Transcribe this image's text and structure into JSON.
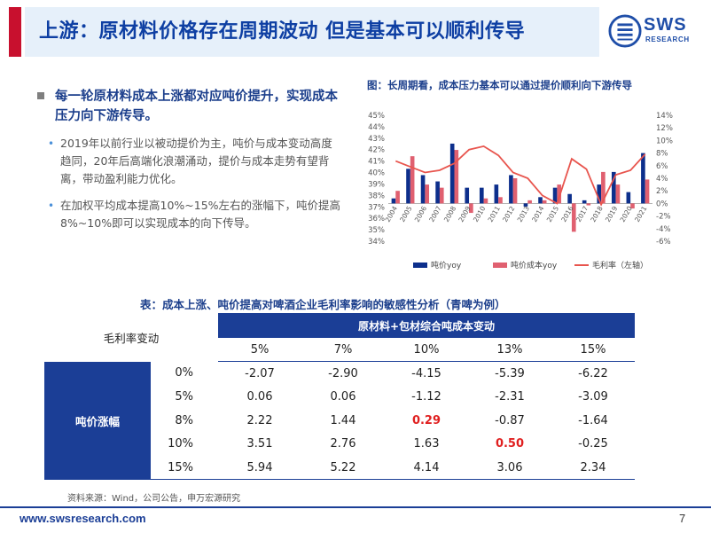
{
  "header": {
    "title": "上游：原材料价格存在周期波动 但是基本可以顺利传导",
    "logo_text": "SWS",
    "logo_sub": "RESEARCH"
  },
  "colors": {
    "accent_red": "#c8102e",
    "brand_blue": "#1b3e96",
    "bar_price": "#0d2f8c",
    "bar_cost": "#e06070",
    "line_margin": "#e8554e"
  },
  "left": {
    "main_bullet": "每一轮原材料成本上涨都对应吨价提升，实现成本压力向下游传导。",
    "sub_bullets": [
      "2019年以前行业以被动提价为主，吨价与成本变动高度趋同，20年后高端化浪潮涌动，提价与成本走势有望背离，带动盈利能力优化。",
      "在加权平均成本提高10%~15%左右的涨幅下，吨价提高8%~10%即可以实现成本的向下传导。"
    ]
  },
  "chart_data": {
    "type": "bar",
    "title": "图：长周期看，成本压力基本可以通过提价顺利向下游传导",
    "categories": [
      "2004",
      "2005",
      "2006",
      "2007",
      "2008",
      "2009",
      "2010",
      "2011",
      "2012",
      "2013",
      "2014",
      "2015",
      "2016",
      "2017",
      "2018",
      "2019",
      "2020",
      "2021"
    ],
    "left_axis": {
      "ylim": [
        34,
        45
      ],
      "ticks": [
        "34%",
        "35%",
        "36%",
        "37%",
        "38%",
        "39%",
        "40%",
        "41%",
        "42%",
        "43%",
        "44%",
        "45%"
      ]
    },
    "right_axis": {
      "ylim": [
        -6,
        14
      ],
      "ticks": [
        "-6%",
        "-4%",
        "-2%",
        "0%",
        "2%",
        "4%",
        "6%",
        "8%",
        "10%",
        "12%",
        "14%"
      ]
    },
    "series": [
      {
        "name": "吨价yoy",
        "axis": "right",
        "kind": "bar",
        "values": [
          0.8,
          5.5,
          4.5,
          3.5,
          9.5,
          2.5,
          2.5,
          3.0,
          4.5,
          -0.5,
          1.0,
          2.5,
          1.5,
          0.5,
          3.0,
          5.0,
          1.8,
          8.0
        ]
      },
      {
        "name": "吨价成本yoy",
        "axis": "right",
        "kind": "bar",
        "values": [
          2.0,
          7.5,
          3.0,
          2.5,
          8.5,
          -1.5,
          0.8,
          1.0,
          4.0,
          0.5,
          0.5,
          3.0,
          -4.5,
          -0.3,
          5.0,
          3.0,
          -0.8,
          3.8
        ]
      },
      {
        "name": "毛利率（左轴）",
        "axis": "left",
        "kind": "line",
        "values": [
          41.0,
          40.5,
          40.0,
          40.2,
          40.8,
          42.0,
          42.3,
          41.5,
          40.0,
          39.5,
          38.0,
          37.3,
          41.2,
          40.3,
          37.2,
          39.8,
          40.2,
          41.6
        ]
      }
    ],
    "legend": [
      "吨价yoy",
      "吨价成本yoy",
      "毛利率（左轴）"
    ]
  },
  "table": {
    "title": "表：成本上涨、吨价提高对啤酒企业毛利率影响的敏感性分析（青啤为例）",
    "corner_label": "毛利率变动",
    "banner": "原材料+包材综合吨成本变动",
    "columns": [
      "5%",
      "7%",
      "10%",
      "13%",
      "15%"
    ],
    "row_group_label": "吨价涨幅",
    "rows": [
      {
        "label": "0%",
        "cells": [
          "-2.07",
          "-2.90",
          "-4.15",
          "-5.39",
          "-6.22"
        ]
      },
      {
        "label": "5%",
        "cells": [
          "0.06",
          "0.06",
          "-1.12",
          "-2.31",
          "-3.09"
        ]
      },
      {
        "label": "8%",
        "cells": [
          "2.22",
          "1.44",
          "0.29",
          "-0.87",
          "-1.64"
        ]
      },
      {
        "label": "10%",
        "cells": [
          "3.51",
          "2.76",
          "1.63",
          "0.50",
          "-0.25"
        ]
      },
      {
        "label": "15%",
        "cells": [
          "5.94",
          "5.22",
          "4.14",
          "3.06",
          "2.34"
        ]
      }
    ],
    "highlighted": [
      "0.29",
      "0.50"
    ]
  },
  "footer": {
    "source": "资料来源：Wind，公司公告，申万宏源研究",
    "url": "www.swsresearch.com",
    "page": "7"
  }
}
